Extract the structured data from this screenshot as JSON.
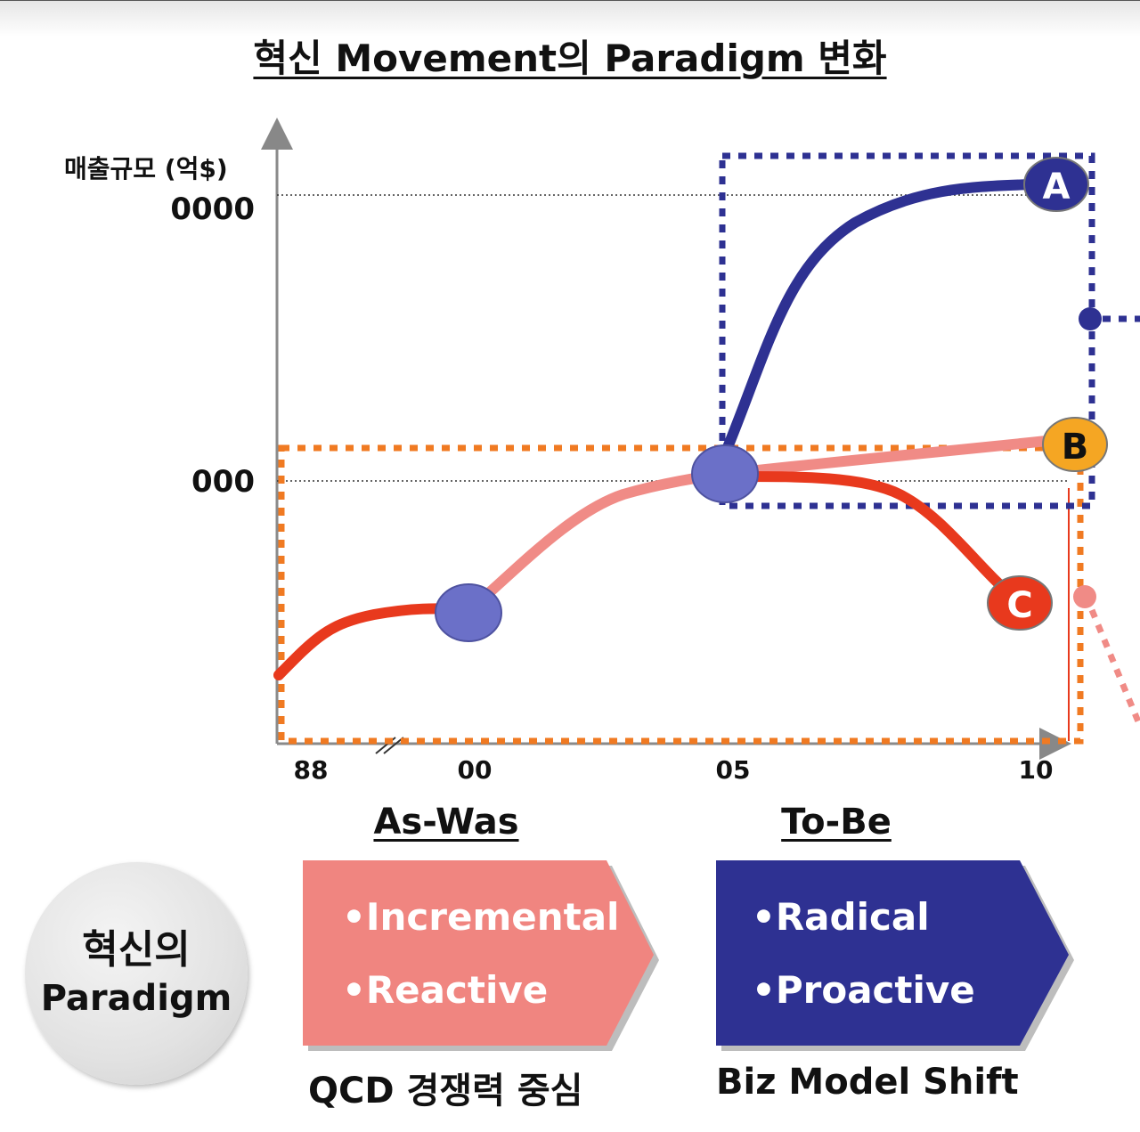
{
  "title": "혁신 Movement의 Paradigm 변화",
  "chart": {
    "ylabel": "매출규모 (억$)",
    "y_ticks": [
      "0000",
      "000"
    ],
    "x_ticks": [
      "88",
      "00",
      "05",
      "10"
    ],
    "markers": {
      "a": "A",
      "b": "B",
      "c": "C"
    },
    "colors": {
      "red_curve": "#e8391d",
      "pink_curve": "#f08b86",
      "blue_curve": "#2e3192",
      "node": "#6b70c8",
      "orange_box": "#f07a22",
      "marker_b": "#f5a623"
    }
  },
  "as_was": {
    "heading": "As-Was",
    "items": [
      "•Incremental",
      "•Reactive"
    ],
    "caption": "QCD 경쟁력 중심",
    "color": "#f08580"
  },
  "to_be": {
    "heading": "To-Be",
    "items": [
      "•Radical",
      "•Proactive"
    ],
    "caption": "Biz Model Shift",
    "color": "#2e3192"
  },
  "paradigm_label": [
    "혁신의",
    "Paradigm"
  ]
}
